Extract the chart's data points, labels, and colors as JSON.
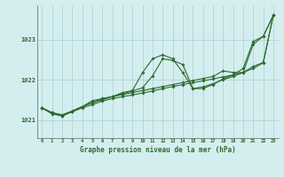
{
  "xlabel": "Graphe pression niveau de la mer (hPa)",
  "bg_color": "#d4eef0",
  "grid_color": "#a8cdd0",
  "line_color": "#2d6a2d",
  "xlim": [
    -0.5,
    23.5
  ],
  "ylim": [
    1020.55,
    1023.85
  ],
  "yticks": [
    1021,
    1022,
    1023
  ],
  "xticks": [
    0,
    1,
    2,
    3,
    4,
    5,
    6,
    7,
    8,
    9,
    10,
    11,
    12,
    13,
    14,
    15,
    16,
    17,
    18,
    19,
    20,
    21,
    22,
    23
  ],
  "line1": [
    1021.3,
    1021.15,
    1021.1,
    1021.2,
    1021.3,
    1021.38,
    1021.47,
    1021.53,
    1021.58,
    1021.62,
    1021.67,
    1021.72,
    1021.78,
    1021.83,
    1021.88,
    1021.93,
    1021.97,
    1022.02,
    1022.07,
    1022.12,
    1022.18,
    1022.28,
    1022.42,
    1023.6
  ],
  "line2": [
    1021.3,
    1021.18,
    1021.1,
    1021.22,
    1021.33,
    1021.43,
    1021.5,
    1021.58,
    1021.65,
    1021.72,
    1021.8,
    1022.1,
    1022.52,
    1022.48,
    1022.38,
    1021.78,
    1021.82,
    1021.9,
    1022.0,
    1022.08,
    1022.18,
    1022.88,
    1023.08,
    1023.6
  ],
  "line3": [
    1021.3,
    1021.18,
    1021.1,
    1021.22,
    1021.33,
    1021.48,
    1021.53,
    1021.58,
    1021.68,
    1021.73,
    1022.18,
    1022.52,
    1022.62,
    1022.52,
    1022.18,
    1021.78,
    1021.78,
    1021.88,
    1022.02,
    1022.12,
    1022.28,
    1022.95,
    1023.08,
    1023.6
  ],
  "line4": [
    1021.3,
    1021.18,
    1021.13,
    1021.22,
    1021.33,
    1021.43,
    1021.53,
    1021.58,
    1021.63,
    1021.68,
    1021.73,
    1021.78,
    1021.83,
    1021.88,
    1021.93,
    1021.98,
    1022.03,
    1022.08,
    1022.22,
    1022.18,
    1022.18,
    1022.33,
    1022.43,
    1023.6
  ]
}
